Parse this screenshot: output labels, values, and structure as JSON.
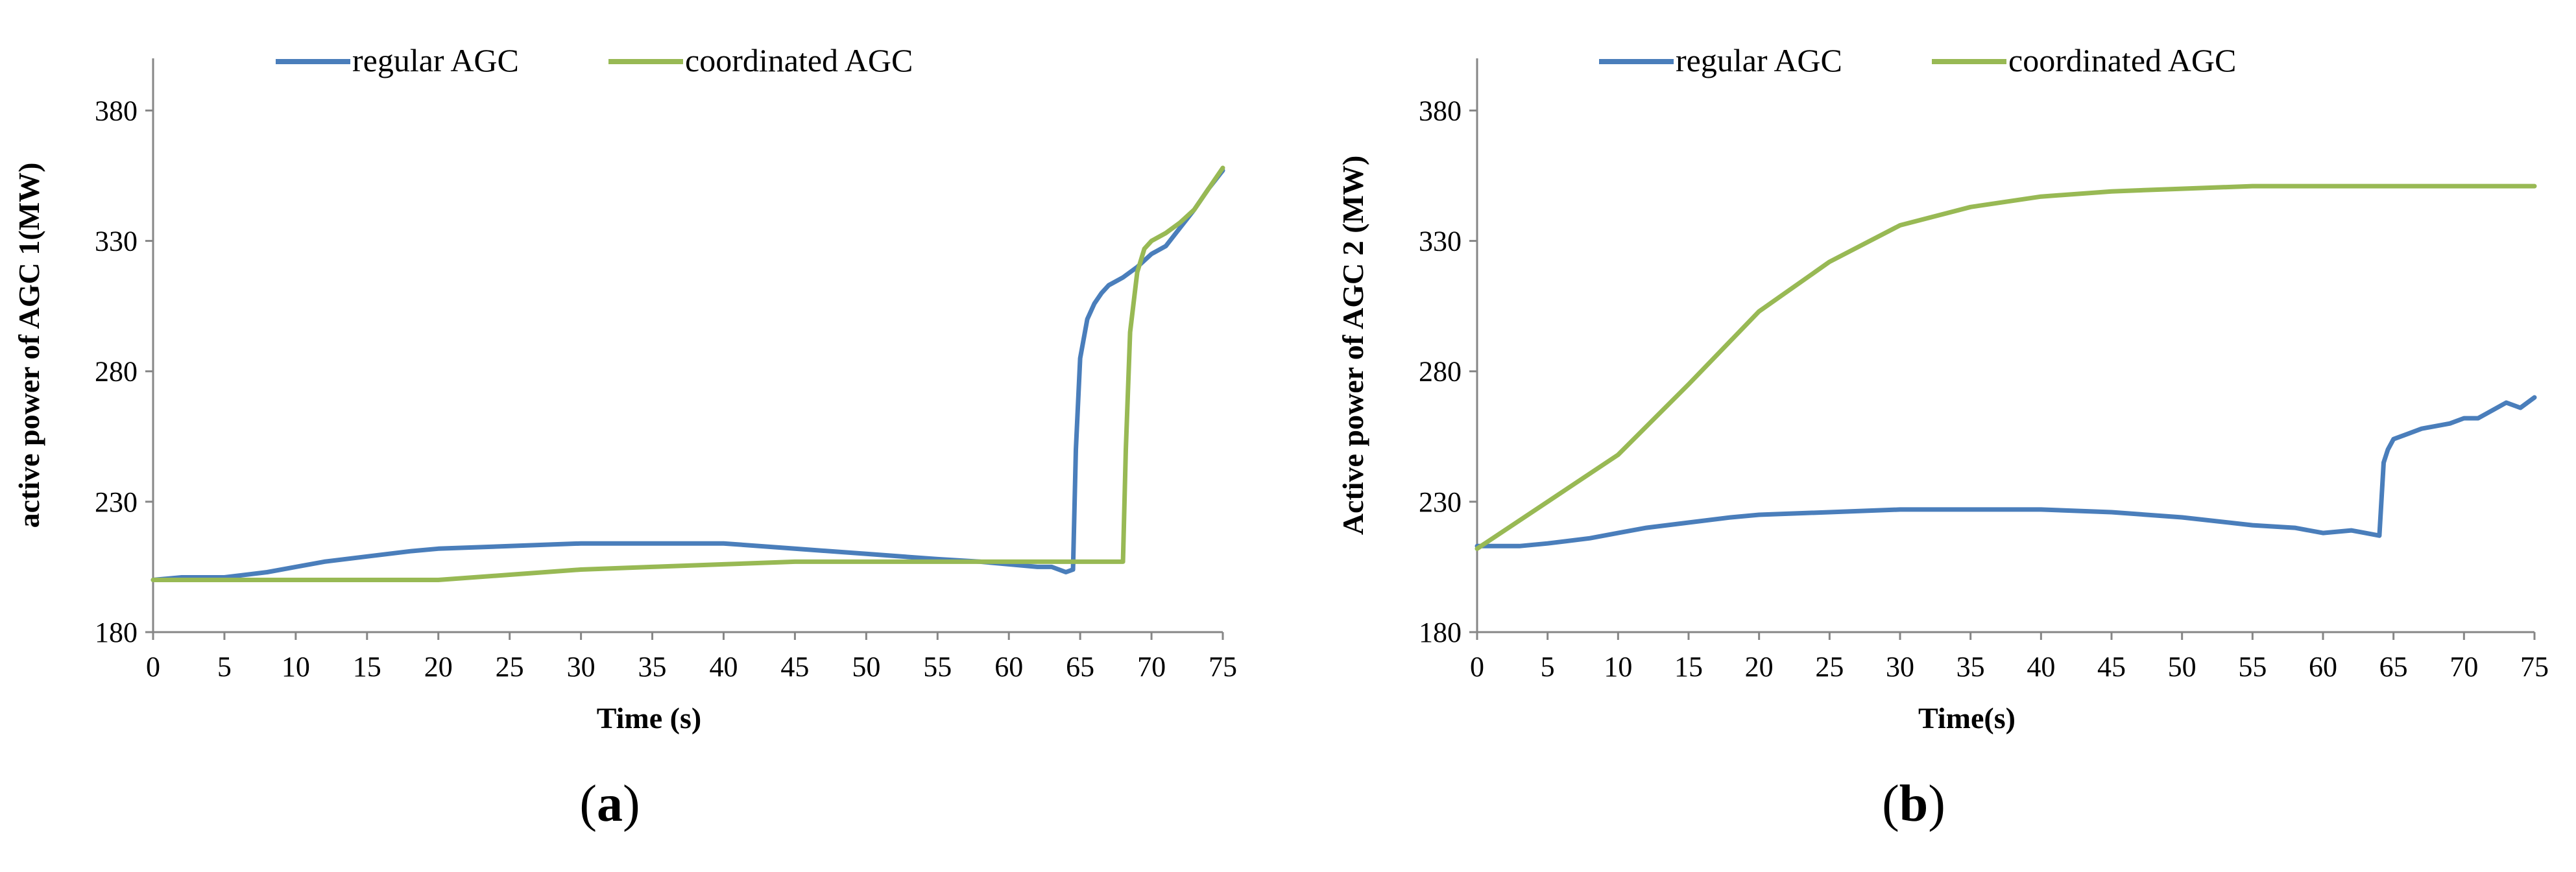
{
  "colors": {
    "regular": "#4a7ebb",
    "coordinated": "#98b954",
    "axis": "#868686"
  },
  "chart_data": [
    {
      "type": "line",
      "panel_label": "a",
      "xlabel": "Time (s)",
      "ylabel": "active power of AGC 1(MW)",
      "xlim": [
        0,
        75
      ],
      "ylim": [
        180,
        400
      ],
      "xticks": [
        0,
        5,
        10,
        15,
        20,
        25,
        30,
        35,
        40,
        45,
        50,
        55,
        60,
        65,
        70,
        75
      ],
      "yticks": [
        180,
        230,
        280,
        330,
        380
      ],
      "legend": [
        "regular AGC",
        "coordinated AGC"
      ],
      "series": [
        {
          "name": "regular AGC",
          "x": [
            0,
            2,
            5,
            8,
            10,
            12,
            15,
            18,
            20,
            25,
            30,
            35,
            40,
            45,
            50,
            55,
            58,
            60,
            62,
            63,
            64,
            64.5,
            64.7,
            65,
            65.5,
            66,
            66.5,
            67,
            68,
            69,
            70,
            71,
            72,
            73,
            74,
            75
          ],
          "y": [
            200,
            201,
            201,
            203,
            205,
            207,
            209,
            211,
            212,
            213,
            214,
            214,
            214,
            212,
            210,
            208,
            207,
            206,
            205,
            205,
            203,
            204,
            250,
            285,
            300,
            306,
            310,
            313,
            316,
            320,
            325,
            328,
            335,
            342,
            350,
            357
          ]
        },
        {
          "name": "coordinated AGC",
          "x": [
            0,
            5,
            10,
            15,
            20,
            25,
            30,
            35,
            40,
            45,
            50,
            55,
            60,
            65,
            68,
            68.2,
            68.5,
            69,
            69.5,
            70,
            71,
            72,
            73,
            74,
            75
          ],
          "y": [
            200,
            200,
            200,
            200,
            200,
            202,
            204,
            205,
            206,
            207,
            207,
            207,
            207,
            207,
            207,
            250,
            295,
            318,
            327,
            330,
            333,
            337,
            342,
            350,
            358
          ]
        }
      ]
    },
    {
      "type": "line",
      "panel_label": "b",
      "xlabel": "Time(s)",
      "ylabel": "Active power of AGC 2 (MW)",
      "xlim": [
        0,
        75
      ],
      "ylim": [
        180,
        400
      ],
      "xticks": [
        0,
        5,
        10,
        15,
        20,
        25,
        30,
        35,
        40,
        45,
        50,
        55,
        60,
        65,
        70,
        75
      ],
      "yticks": [
        180,
        230,
        280,
        330,
        380
      ],
      "legend": [
        "regular AGC",
        "coordinated AGC"
      ],
      "series": [
        {
          "name": "regular AGC",
          "x": [
            0,
            3,
            5,
            8,
            10,
            12,
            15,
            18,
            20,
            25,
            30,
            35,
            40,
            45,
            50,
            55,
            58,
            60,
            62,
            63,
            64,
            64.3,
            64.6,
            65,
            66,
            67,
            68,
            69,
            70,
            71,
            72,
            73,
            74,
            75
          ],
          "y": [
            213,
            213,
            214,
            216,
            218,
            220,
            222,
            224,
            225,
            226,
            227,
            227,
            227,
            226,
            224,
            221,
            220,
            218,
            219,
            218,
            217,
            245,
            250,
            254,
            256,
            258,
            259,
            260,
            262,
            262,
            265,
            268,
            266,
            270
          ]
        },
        {
          "name": "coordinated AGC",
          "x": [
            0,
            5,
            10,
            15,
            20,
            25,
            30,
            35,
            40,
            45,
            50,
            55,
            60,
            65,
            70,
            75
          ],
          "y": [
            212,
            230,
            248,
            275,
            303,
            322,
            336,
            343,
            347,
            349,
            350,
            351,
            351,
            351,
            351,
            351
          ]
        }
      ]
    }
  ]
}
